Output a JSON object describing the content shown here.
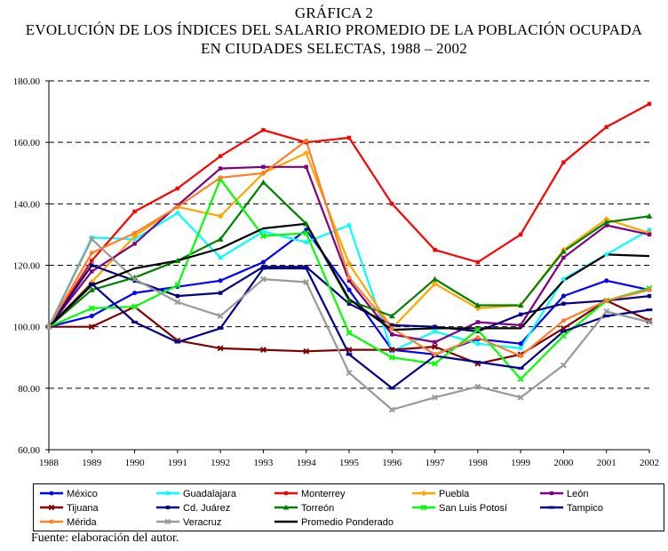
{
  "title": {
    "line1": "GRÁFICA 2",
    "line2": "EVOLUCIÓN DE LOS ÍNDICES DEL SALARIO PROMEDIO DE LA POBLACIÓN OCUPADA",
    "line3": "EN CIUDADES SELECTAS, 1988 – 2002"
  },
  "source": "Fuente: elaboración del autor.",
  "chart_data": {
    "type": "line",
    "x": [
      "1988",
      "1989",
      "1990",
      "1991",
      "1992",
      "1993",
      "1994",
      "1995",
      "1996",
      "1997",
      "1998",
      "1999",
      "2000",
      "2001",
      "2002"
    ],
    "ylim": [
      60,
      180
    ],
    "yticks": [
      "60.00",
      "80.00",
      "100.00",
      "120.00",
      "140.00",
      "160.00",
      "180.00"
    ],
    "ytick_values": [
      60,
      80,
      100,
      120,
      140,
      160,
      180
    ],
    "grid": "dashed horizontal",
    "legend_position": "bottom",
    "series": [
      {
        "name": "México",
        "color": "#0000ff",
        "marker": "circle",
        "values": [
          100,
          103.5,
          111,
          113,
          115,
          121,
          131.5,
          112,
          92.5,
          91,
          96,
          94.5,
          110,
          115,
          112
        ]
      },
      {
        "name": "Guadalajara",
        "color": "#00ffff",
        "marker": "square",
        "values": [
          100,
          129,
          128.5,
          137,
          122.5,
          131,
          127.5,
          133,
          92,
          98.5,
          94.5,
          93,
          115.5,
          123.5,
          131.5
        ]
      },
      {
        "name": "Monterrey",
        "color": "#ff0000",
        "marker": "square",
        "values": [
          100,
          121.5,
          137.5,
          145,
          155.5,
          164,
          160,
          161.5,
          140,
          125,
          121,
          130,
          153.5,
          165,
          172.5
        ]
      },
      {
        "name": "Puebla",
        "color": "#ffa500",
        "marker": "diamond",
        "values": [
          100,
          114.5,
          129.5,
          139,
          136,
          150,
          156.5,
          120.5,
          99.5,
          114,
          106,
          107,
          125,
          135,
          130.5
        ]
      },
      {
        "name": "León",
        "color": "#800080",
        "marker": "square",
        "values": [
          100,
          118,
          127,
          139.5,
          151.5,
          152,
          152,
          115,
          97.5,
          95,
          101.5,
          100.5,
          122.5,
          133,
          130
        ]
      },
      {
        "name": "Tijuana",
        "color": "#800000",
        "marker": "x",
        "values": [
          100,
          100,
          106.5,
          95.5,
          93,
          92.5,
          92,
          92.5,
          92.5,
          93.5,
          88,
          91,
          99.5,
          108.5,
          102
        ]
      },
      {
        "name": "Cd. Juárez",
        "color": "#000080",
        "marker": "square",
        "values": [
          100,
          120,
          115,
          110,
          111,
          119.5,
          119.5,
          107.5,
          100.5,
          100,
          98.5,
          104,
          107.5,
          108.5,
          110
        ]
      },
      {
        "name": "Torreón",
        "color": "#008000",
        "marker": "triangle",
        "values": [
          100,
          112,
          116,
          121.5,
          128.5,
          147,
          133.5,
          108.5,
          103.5,
          115.5,
          107,
          107,
          124.5,
          134,
          136
        ]
      },
      {
        "name": "San Luis Potosí",
        "color": "#00ff00",
        "marker": "x",
        "values": [
          100,
          106,
          106.5,
          113.5,
          148,
          129.5,
          130.5,
          98,
          90,
          88,
          99,
          83,
          97,
          108.5,
          112.5
        ]
      },
      {
        "name": "Tampico",
        "color": "#00008b",
        "marker": "dash",
        "values": [
          100,
          114,
          101.5,
          95,
          99.5,
          119,
          119,
          91,
          80,
          90.5,
          88.5,
          86.5,
          98.5,
          103.5,
          105.5
        ]
      },
      {
        "name": "Mérida",
        "color": "#ff7f27",
        "marker": "circle",
        "values": [
          100,
          124,
          130.5,
          139,
          148.5,
          150,
          160.5,
          116,
          99.5,
          91,
          96.5,
          90.5,
          102,
          108.5,
          112
        ]
      },
      {
        "name": "Veracruz",
        "color": "#999999",
        "marker": "x",
        "values": [
          100,
          128.5,
          115.5,
          108,
          103.5,
          115.5,
          114.5,
          85,
          73,
          77,
          80.5,
          77,
          87.5,
          105,
          101.5
        ]
      },
      {
        "name": "Promedio Ponderado",
        "color": "#000000",
        "marker": "none",
        "values": [
          100,
          113.5,
          119,
          121.5,
          125.5,
          132,
          133.5,
          109,
          99,
          99.5,
          99.5,
          99.5,
          115,
          123.5,
          123
        ]
      }
    ]
  }
}
